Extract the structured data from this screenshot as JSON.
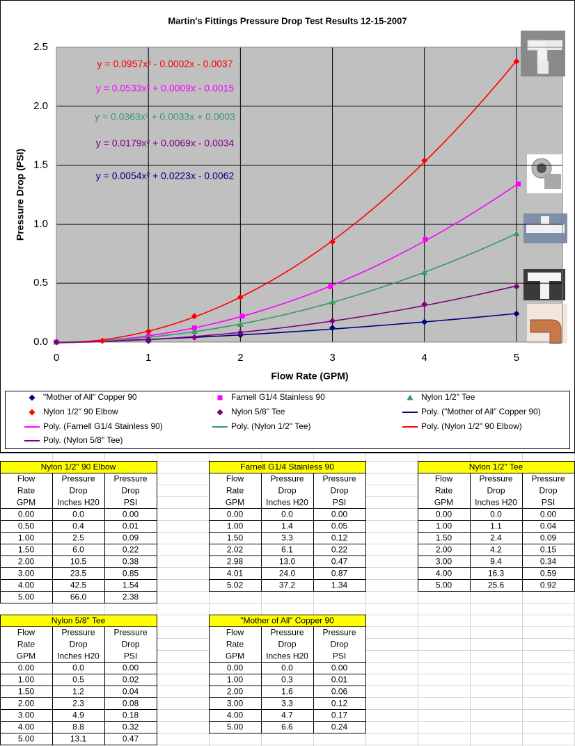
{
  "chart_data": {
    "type": "scatter",
    "title": "Martin's Fittings Pressure Drop Test Results 12-15-2007",
    "x_label": "Flow Rate (GPM)",
    "y_label": "Pressure Drop (PSI)",
    "xlim": [
      0,
      5.5
    ],
    "ylim": [
      0,
      2.5
    ],
    "xticks": [
      0,
      1,
      2,
      3,
      4,
      5
    ],
    "yticks": [
      {
        "value": 0,
        "label": "0.0"
      },
      0.5,
      {
        "value": 1,
        "label": "1.0"
      },
      1.5,
      {
        "value": 2,
        "label": "2.0"
      },
      2.5
    ],
    "grid": true,
    "series": [
      {
        "name": "\"Mother of All\" Copper 90",
        "color": "#000080",
        "marker": "diamond",
        "x": [
          0,
          1,
          2,
          3,
          4,
          5
        ],
        "values": [
          0,
          0.01,
          0.06,
          0.12,
          0.17,
          0.24
        ]
      },
      {
        "name": "Farnell G1/4 Stainless 90",
        "color": "#ff00ff",
        "marker": "square",
        "x": [
          0,
          1,
          1.5,
          2.02,
          2.98,
          4.01,
          5.02
        ],
        "values": [
          0,
          0.05,
          0.12,
          0.22,
          0.47,
          0.87,
          1.34
        ]
      },
      {
        "name": "Nylon 1/2\" Tee",
        "color": "#339966",
        "marker": "triangle",
        "x": [
          0,
          1,
          1.5,
          2,
          3,
          4,
          5
        ],
        "values": [
          0,
          0.04,
          0.09,
          0.15,
          0.34,
          0.59,
          0.92
        ]
      },
      {
        "name": "Nylon 1/2\" 90 Elbow",
        "color": "#ff0000",
        "marker": "diamond",
        "x": [
          0,
          0.5,
          1,
          1.5,
          2,
          3,
          4,
          5
        ],
        "values": [
          0,
          0.01,
          0.09,
          0.22,
          0.38,
          0.85,
          1.54,
          2.38
        ]
      },
      {
        "name": "Nylon 5/8\" Tee",
        "color": "#800080",
        "marker": "diamond",
        "x": [
          0,
          1,
          1.5,
          2,
          3,
          4,
          5
        ],
        "values": [
          0,
          0.02,
          0.04,
          0.08,
          0.18,
          0.32,
          0.47
        ]
      }
    ],
    "trendlines": [
      {
        "name": "Poly. (\"Mother of All\" Copper 90)",
        "color": "#000080",
        "equation": "y = 0.0054x² + 0.0223x - 0.0062"
      },
      {
        "name": "Poly. (Farnell G1/4 Stainless 90)",
        "color": "#ff00ff",
        "equation": "y = 0.0533x² + 0.0009x - 0.0015"
      },
      {
        "name": "Poly. (Nylon 1/2\" Tee)",
        "color": "#339966",
        "equation": "y = 0.0363x² + 0.0033x + 0.0003"
      },
      {
        "name": "Poly. (Nylon 1/2\" 90 Elbow)",
        "color": "#ff0000",
        "equation": "y = 0.0957x² - 0.0002x - 0.0037"
      },
      {
        "name": "Poly. (Nylon 5/8\" Tee)",
        "color": "#800080",
        "equation": "y = 0.0179x² + 0.0069x - 0.0034"
      }
    ]
  },
  "tables": [
    {
      "title": "Nylon 1/2\" 90 Elbow",
      "header": [
        [
          "Flow",
          "Pressure",
          "Pressure"
        ],
        [
          "Rate",
          "Drop",
          "Drop"
        ],
        [
          "GPM",
          "Inches H20",
          "PSI"
        ]
      ],
      "rows": [
        [
          "0.00",
          "0.0",
          "0.00"
        ],
        [
          "0.50",
          "0.4",
          "0.01"
        ],
        [
          "1.00",
          "2.5",
          "0.09"
        ],
        [
          "1.50",
          "6.0",
          "0.22"
        ],
        [
          "2.00",
          "10.5",
          "0.38"
        ],
        [
          "3.00",
          "23.5",
          "0.85"
        ],
        [
          "4.00",
          "42.5",
          "1.54"
        ],
        [
          "5.00",
          "66.0",
          "2.38"
        ]
      ]
    },
    {
      "title": "Farnell G1/4 Stainless 90",
      "header": [
        [
          "Flow",
          "Pressure",
          "Pressure"
        ],
        [
          "Rate",
          "Drop",
          "Drop"
        ],
        [
          "GPM",
          "Inches H20",
          "PSI"
        ]
      ],
      "rows": [
        [
          "0.00",
          "0.0",
          "0.00"
        ],
        [
          "1.00",
          "1.4",
          "0.05"
        ],
        [
          "1.50",
          "3.3",
          "0.12"
        ],
        [
          "2.02",
          "6.1",
          "0.22"
        ],
        [
          "2.98",
          "13.0",
          "0.47"
        ],
        [
          "4.01",
          "24.0",
          "0.87"
        ],
        [
          "5.02",
          "37.2",
          "1.34"
        ]
      ]
    },
    {
      "title": "Nylon 1/2\" Tee",
      "header": [
        [
          "Flow",
          "Pressure",
          "Pressure"
        ],
        [
          "Rate",
          "Drop",
          "Drop"
        ],
        [
          "GPM",
          "Inches H20",
          "PSI"
        ]
      ],
      "rows": [
        [
          "0.00",
          "0.0",
          "0.00"
        ],
        [
          "1.00",
          "1.1",
          "0.04"
        ],
        [
          "1.50",
          "2.4",
          "0.09"
        ],
        [
          "2.00",
          "4.2",
          "0.15"
        ],
        [
          "3.00",
          "9.4",
          "0.34"
        ],
        [
          "4.00",
          "16.3",
          "0.59"
        ],
        [
          "5.00",
          "25.6",
          "0.92"
        ]
      ]
    },
    {
      "title": "Nylon 5/8\" Tee",
      "header": [
        [
          "Flow",
          "Pressure",
          "Pressure"
        ],
        [
          "Rate",
          "Drop",
          "Drop"
        ],
        [
          "GPM",
          "Inches H20",
          "PSI"
        ]
      ],
      "rows": [
        [
          "0.00",
          "0.0",
          "0.00"
        ],
        [
          "1.00",
          "0.5",
          "0.02"
        ],
        [
          "1.50",
          "1.2",
          "0.04"
        ],
        [
          "2.00",
          "2.3",
          "0.08"
        ],
        [
          "3.00",
          "4.9",
          "0.18"
        ],
        [
          "4.00",
          "8.8",
          "0.32"
        ],
        [
          "5.00",
          "13.1",
          "0.47"
        ]
      ]
    },
    {
      "title": "\"Mother of All\" Copper 90",
      "header": [
        [
          "Flow",
          "Pressure",
          "Pressure"
        ],
        [
          "Rate",
          "Drop",
          "Drop"
        ],
        [
          "GPM",
          "Inches H20",
          "PSI"
        ]
      ],
      "rows": [
        [
          "0.00",
          "0.0",
          "0.00"
        ],
        [
          "1.00",
          "0.3",
          "0.01"
        ],
        [
          "2.00",
          "1.6",
          "0.06"
        ],
        [
          "3.00",
          "3.3",
          "0.12"
        ],
        [
          "4.00",
          "4.7",
          "0.17"
        ],
        [
          "5.00",
          "6.6",
          "0.24"
        ]
      ]
    }
  ]
}
